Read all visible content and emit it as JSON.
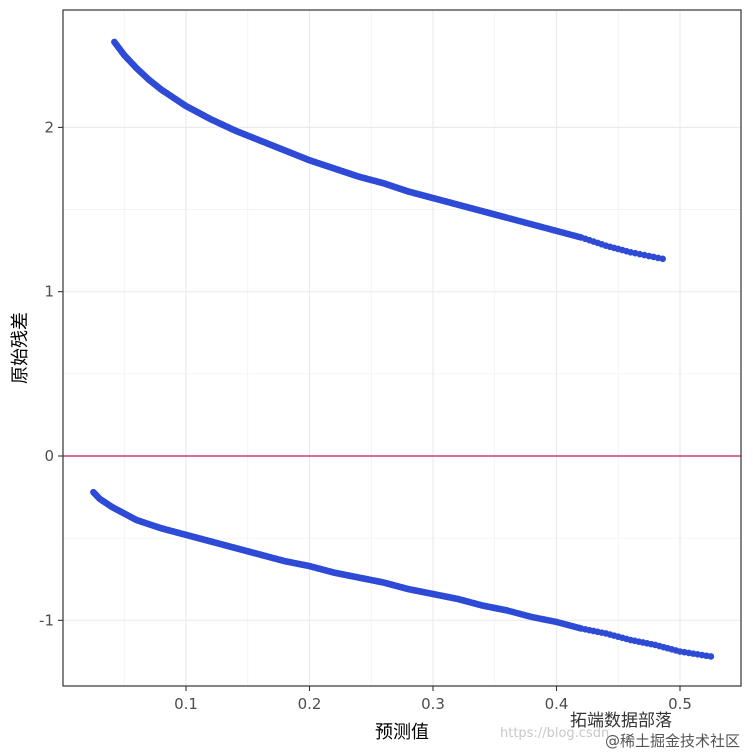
{
  "chart_data": {
    "type": "scatter",
    "xlabel": "预测值",
    "ylabel": "原始残差",
    "xlim": [
      0.0,
      0.5
    ],
    "ylim": [
      -1.4,
      2.6
    ],
    "x_ticks": [
      0.1,
      0.2,
      0.3,
      0.4,
      0.5
    ],
    "y_ticks": [
      -1,
      0,
      1,
      2
    ],
    "x_tick_labels": [
      "0.1",
      "0.2",
      "0.3",
      "0.4",
      "0.5"
    ],
    "y_tick_labels": [
      "-1",
      "0",
      "1",
      "2"
    ],
    "grid": true,
    "reference_line": {
      "y": 0,
      "color": "#c2185b"
    },
    "point_color": "#2e4bd6",
    "series": [
      {
        "points": [
          [
            0.042,
            2.52
          ],
          [
            0.05,
            2.44
          ],
          [
            0.06,
            2.36
          ],
          [
            0.07,
            2.29
          ],
          [
            0.08,
            2.23
          ],
          [
            0.09,
            2.18
          ],
          [
            0.1,
            2.13
          ],
          [
            0.12,
            2.05
          ],
          [
            0.14,
            1.98
          ],
          [
            0.16,
            1.92
          ],
          [
            0.18,
            1.86
          ],
          [
            0.2,
            1.8
          ],
          [
            0.22,
            1.75
          ],
          [
            0.24,
            1.7
          ],
          [
            0.26,
            1.66
          ],
          [
            0.28,
            1.61
          ],
          [
            0.3,
            1.57
          ],
          [
            0.32,
            1.53
          ],
          [
            0.34,
            1.49
          ],
          [
            0.36,
            1.45
          ],
          [
            0.38,
            1.41
          ],
          [
            0.4,
            1.37
          ],
          [
            0.42,
            1.33
          ],
          [
            0.44,
            1.28
          ],
          [
            0.46,
            1.24
          ],
          [
            0.486,
            1.2
          ]
        ]
      },
      {
        "points": [
          [
            0.025,
            -0.22
          ],
          [
            0.03,
            -0.26
          ],
          [
            0.04,
            -0.31
          ],
          [
            0.05,
            -0.35
          ],
          [
            0.06,
            -0.39
          ],
          [
            0.08,
            -0.44
          ],
          [
            0.1,
            -0.48
          ],
          [
            0.12,
            -0.52
          ],
          [
            0.14,
            -0.56
          ],
          [
            0.16,
            -0.6
          ],
          [
            0.18,
            -0.64
          ],
          [
            0.2,
            -0.67
          ],
          [
            0.22,
            -0.71
          ],
          [
            0.24,
            -0.74
          ],
          [
            0.26,
            -0.77
          ],
          [
            0.28,
            -0.81
          ],
          [
            0.3,
            -0.84
          ],
          [
            0.32,
            -0.87
          ],
          [
            0.34,
            -0.91
          ],
          [
            0.36,
            -0.94
          ],
          [
            0.38,
            -0.98
          ],
          [
            0.4,
            -1.01
          ],
          [
            0.42,
            -1.05
          ],
          [
            0.44,
            -1.08
          ],
          [
            0.46,
            -1.12
          ],
          [
            0.48,
            -1.15
          ],
          [
            0.5,
            -1.19
          ],
          [
            0.525,
            -1.22
          ]
        ]
      }
    ]
  },
  "watermark": {
    "url_text": "https://blog.csdn",
    "brand": "拓端数据部落",
    "community": "@稀土掘金技术社区"
  }
}
